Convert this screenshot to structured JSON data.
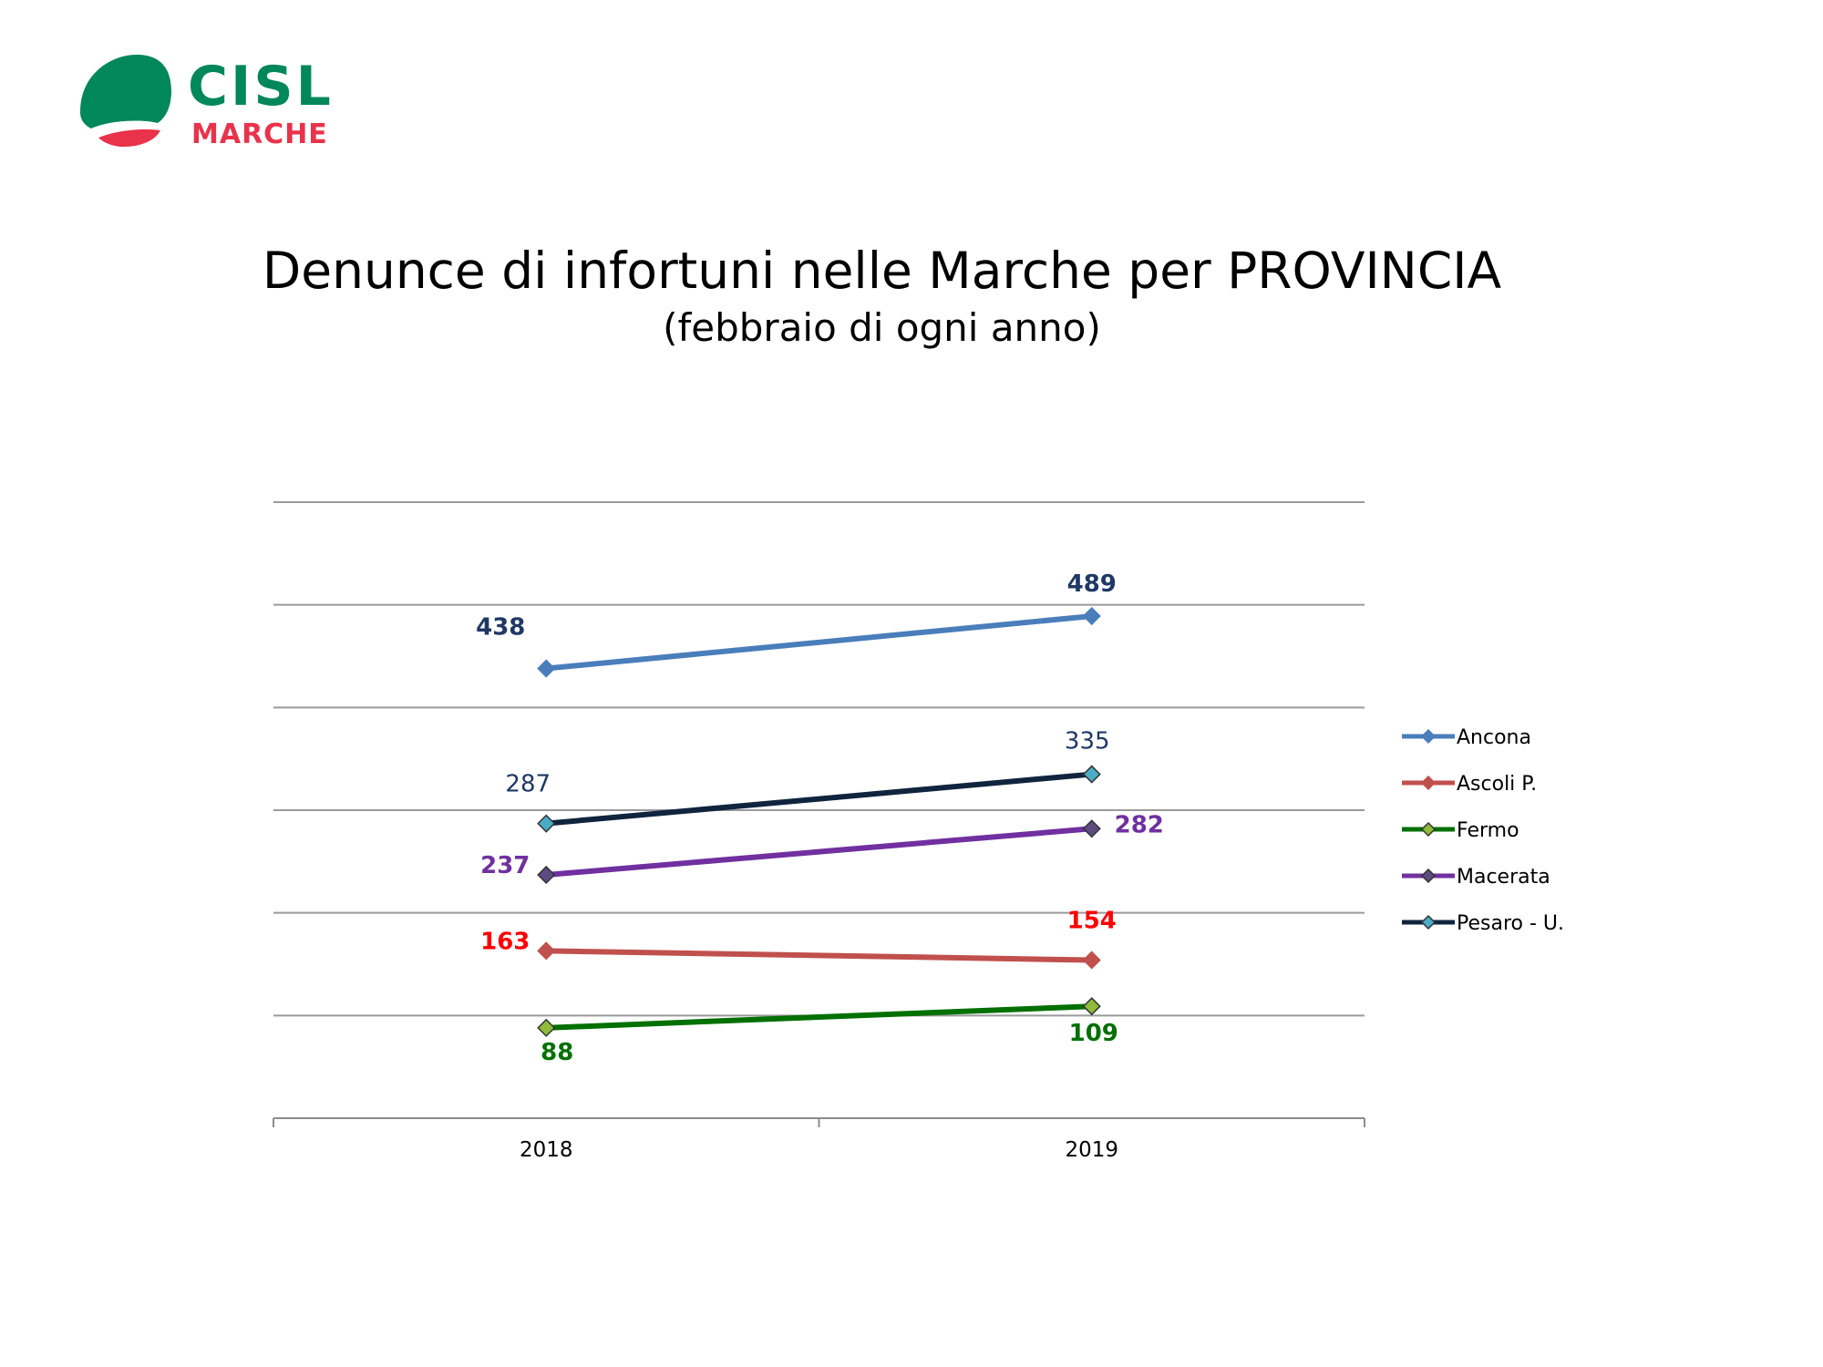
{
  "logo": {
    "text": "CISL",
    "subtext": "MARCHE",
    "green": "#00875a",
    "red": "#e8334a"
  },
  "chart_data": {
    "type": "line",
    "title": "Denunce di infortuni nelle Marche per PROVINCIA",
    "subtitle": "(febbraio di ogni anno)",
    "categories": [
      "2018",
      "2019"
    ],
    "ylim": [
      0,
      600
    ],
    "grid": true,
    "legend": "right",
    "series": [
      {
        "name": "Ancona",
        "values": [
          438,
          489
        ],
        "color": "#4a7ebb",
        "marker": "#4a7ebb",
        "label_color": "#1f3864",
        "label_bold": true
      },
      {
        "name": "Ascoli P.",
        "values": [
          163,
          154
        ],
        "color": "#c0504d",
        "marker": "#c0504d",
        "label_color": "#ff0000",
        "label_bold": true
      },
      {
        "name": "Fermo",
        "values": [
          88,
          109
        ],
        "color": "#007000",
        "marker": "#8fbc3a",
        "label_color": "#007000",
        "label_bold": true
      },
      {
        "name": "Macerata",
        "values": [
          237,
          282
        ],
        "color": "#7030a0",
        "marker": "#5e4b82",
        "label_color": "#7030a0",
        "label_bold": true
      },
      {
        "name": "Pesaro - U.",
        "values": [
          287,
          335
        ],
        "color": "#10243e",
        "marker": "#4bacc6",
        "label_color": "#1f3864",
        "label_bold": false
      }
    ]
  }
}
